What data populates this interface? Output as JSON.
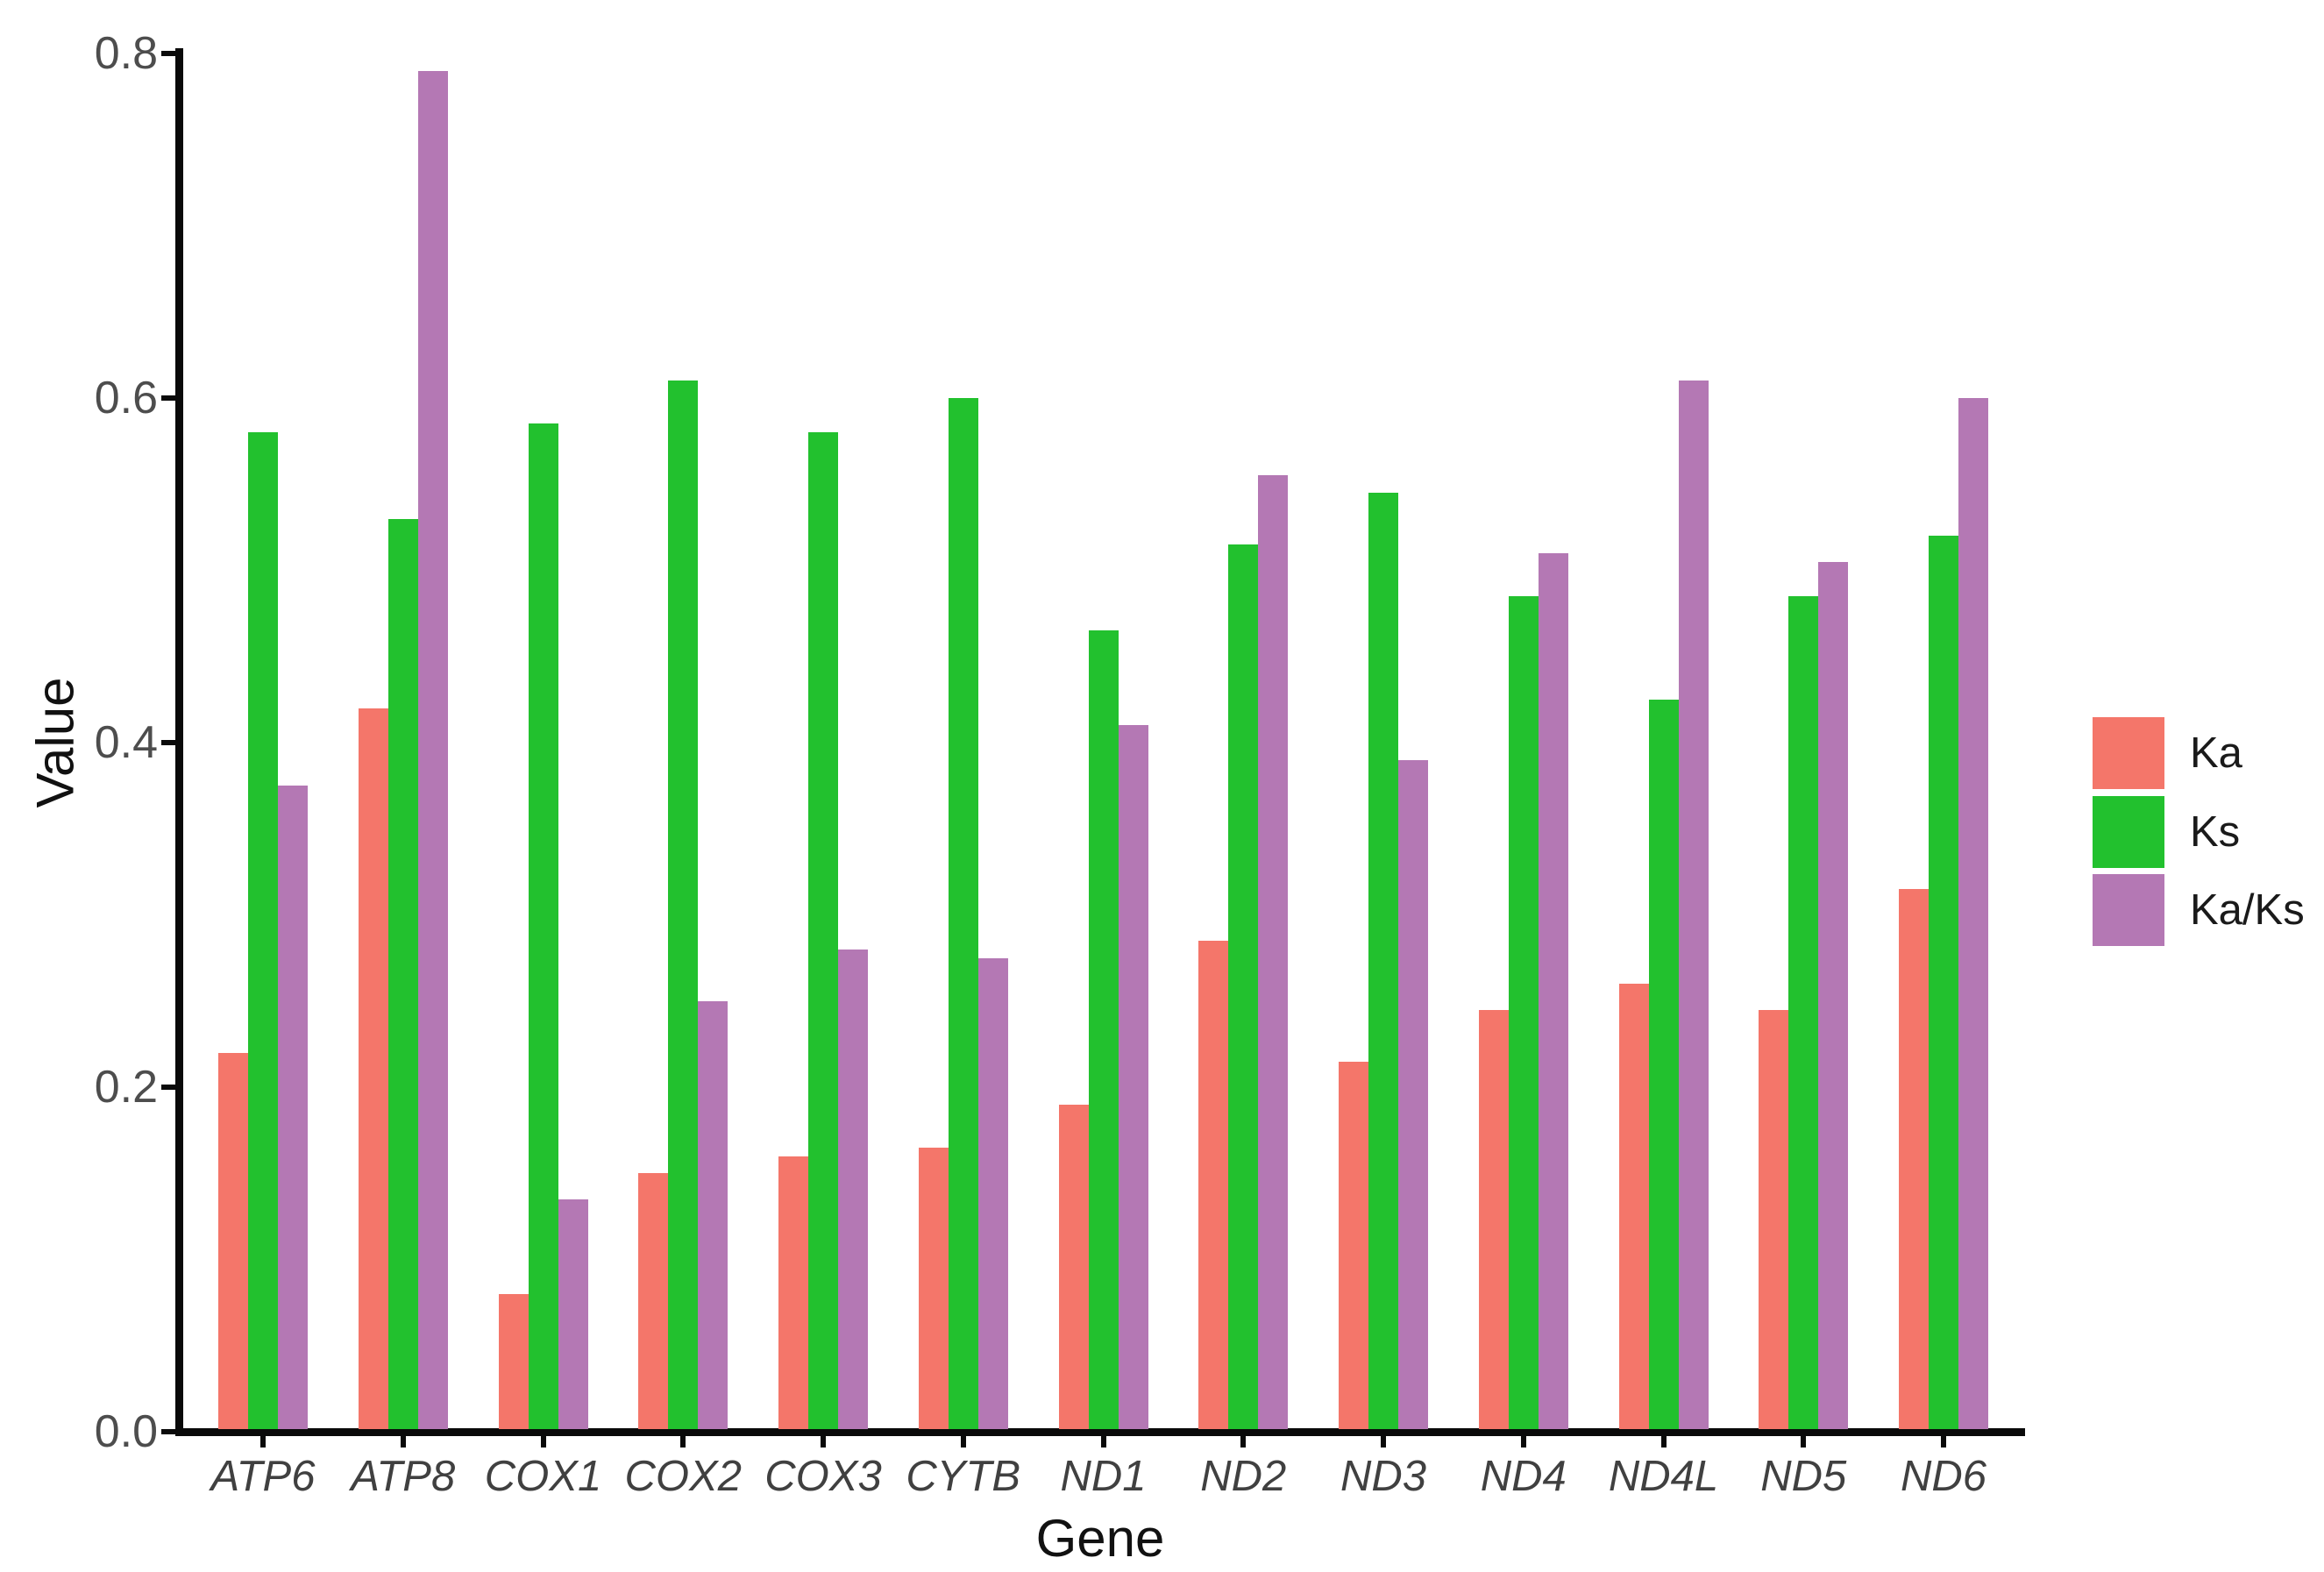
{
  "chart_data": {
    "type": "bar",
    "title": "",
    "xlabel": "Gene",
    "ylabel": "Value",
    "ylim": [
      0,
      0.8
    ],
    "yticks": [
      0.0,
      0.2,
      0.4,
      0.6,
      0.8
    ],
    "grid": false,
    "legend_position": "right",
    "background_color": "#ffffff",
    "axis_color": "#0a0a0a",
    "tick_label_color": "#4d4d4d",
    "category_label_color": "#404040",
    "category_label_style": "italic",
    "categories": [
      "ATP6",
      "ATP8",
      "COX1",
      "COX2",
      "COX3",
      "CYTB",
      "ND1",
      "ND2",
      "ND3",
      "ND4",
      "ND4L",
      "ND5",
      "ND6"
    ],
    "series": [
      {
        "name": "Ka",
        "color": "#f4766a",
        "values": [
          0.22,
          0.42,
          0.08,
          0.15,
          0.16,
          0.165,
          0.19,
          0.285,
          0.215,
          0.245,
          0.26,
          0.245,
          0.315
        ]
      },
      {
        "name": "Ks",
        "color": "#22c12e",
        "values": [
          0.58,
          0.53,
          0.585,
          0.61,
          0.58,
          0.6,
          0.465,
          0.515,
          0.545,
          0.485,
          0.425,
          0.485,
          0.52
        ]
      },
      {
        "name": "Ka/Ks",
        "color": "#b478b4",
        "values": [
          0.375,
          0.79,
          0.135,
          0.25,
          0.28,
          0.275,
          0.41,
          0.555,
          0.39,
          0.51,
          0.61,
          0.505,
          0.6
        ]
      }
    ]
  }
}
